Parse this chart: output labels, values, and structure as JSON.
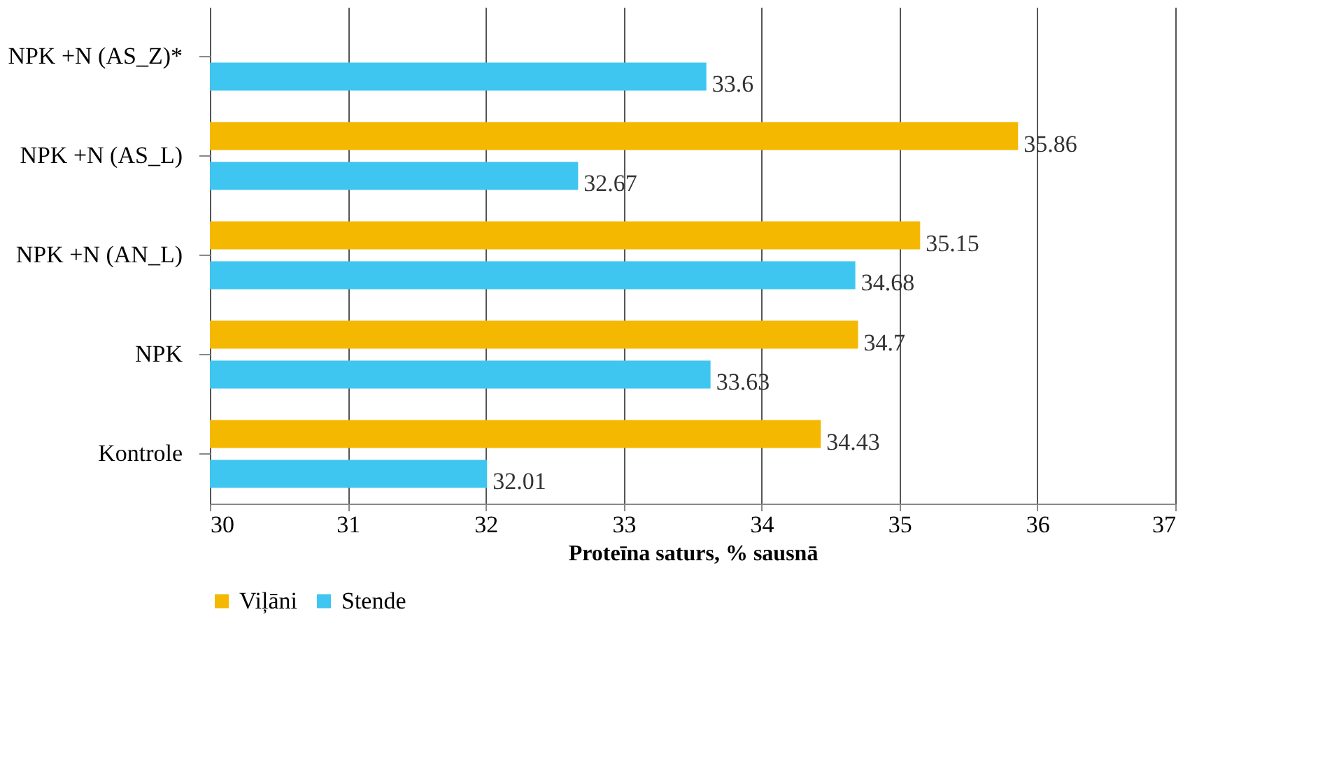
{
  "chart_data": {
    "type": "bar",
    "orientation": "horizontal",
    "xlabel": "Proteīna saturs, %  sausnā",
    "categories": [
      "NPK +N (AS_Z)*",
      "NPK +N (AS_L)",
      "NPK +N (AN_L)",
      "NPK",
      "Kontrole"
    ],
    "series": [
      {
        "name": "Viļāni",
        "color": "#f5b800",
        "values": [
          null,
          35.86,
          35.15,
          34.7,
          34.43
        ]
      },
      {
        "name": "Stende",
        "color": "#3ec6f0",
        "values": [
          33.6,
          32.67,
          34.68,
          33.63,
          32.01
        ]
      }
    ],
    "xlim": [
      30,
      37
    ],
    "xticks": [
      30,
      31,
      32,
      33,
      34,
      35,
      36,
      37
    ],
    "grid": "x",
    "legend": "bottom",
    "data_labels": true
  }
}
